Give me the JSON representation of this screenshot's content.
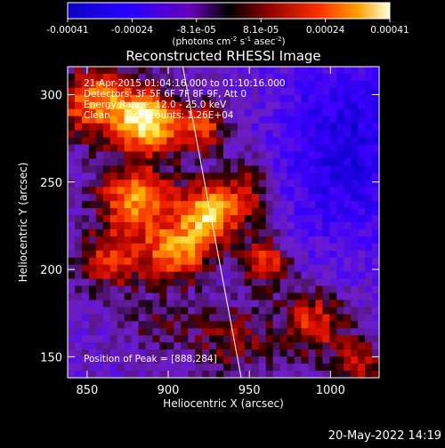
{
  "chart_data": {
    "type": "heatmap",
    "title": "Reconstructed RHESSI Image",
    "xlabel": "Heliocentric X (arcsec)",
    "ylabel": "Heliocentric Y (arcsec)",
    "xlim": [
      838,
      1030
    ],
    "ylim": [
      138,
      316
    ],
    "x_ticks": [
      850,
      900,
      950,
      1000
    ],
    "y_ticks": [
      150,
      200,
      250,
      300
    ],
    "colorbar": {
      "ticks": [
        "-0.00041",
        "-0.00024",
        "-8.1e-05",
        "8.1e-05",
        "0.00024",
        "0.00041"
      ],
      "range": [
        -0.00041,
        0.00041
      ],
      "units_label": "(photons cm<sup>-2</sup> s<sup>-1</sup> asec<sup>-2</sup>)",
      "units_text": "(photons cm-2 s-1 asec-2)"
    },
    "annotations": [
      "21-Apr-2015 01:04:16.000 to 01:10:16.000",
      "Detectors: 3F 5F 6F 7F 8F 9F, Att 0",
      "Energy Range: 12.0 - 25.0 keV",
      "Clean     Total counts: 1.26E+04"
    ],
    "peak_label": "Position of Peak = [888,284]",
    "peak_position": [
      888,
      284
    ],
    "limb_line": [
      [
        909,
        316
      ],
      [
        945,
        138
      ]
    ],
    "emission_blobs": [
      {
        "x": 888,
        "y": 284,
        "amp": 1.0,
        "sx": 14,
        "sy": 12
      },
      {
        "x": 855,
        "y": 296,
        "amp": 0.75,
        "sx": 18,
        "sy": 14
      },
      {
        "x": 922,
        "y": 280,
        "amp": 0.55,
        "sx": 10,
        "sy": 10
      },
      {
        "x": 925,
        "y": 232,
        "amp": 0.95,
        "sx": 12,
        "sy": 12
      },
      {
        "x": 880,
        "y": 240,
        "amp": 0.8,
        "sx": 16,
        "sy": 14
      },
      {
        "x": 905,
        "y": 210,
        "amp": 0.75,
        "sx": 14,
        "sy": 12
      },
      {
        "x": 865,
        "y": 205,
        "amp": 0.55,
        "sx": 14,
        "sy": 12
      },
      {
        "x": 950,
        "y": 245,
        "amp": 0.45,
        "sx": 10,
        "sy": 14
      },
      {
        "x": 960,
        "y": 205,
        "amp": 0.6,
        "sx": 10,
        "sy": 10
      },
      {
        "x": 990,
        "y": 170,
        "amp": 0.55,
        "sx": 14,
        "sy": 14
      },
      {
        "x": 1020,
        "y": 145,
        "amp": 0.45,
        "sx": 12,
        "sy": 10
      },
      {
        "x": 940,
        "y": 160,
        "amp": 0.35,
        "sx": 18,
        "sy": 14
      },
      {
        "x": 895,
        "y": 170,
        "amp": 0.25,
        "sx": 14,
        "sy": 10
      }
    ],
    "negative_region": {
      "x": 1010,
      "y": 270,
      "amp": -0.55,
      "sx": 30,
      "sy": 40
    }
  },
  "timestamp": "20-May-2022 14:19"
}
